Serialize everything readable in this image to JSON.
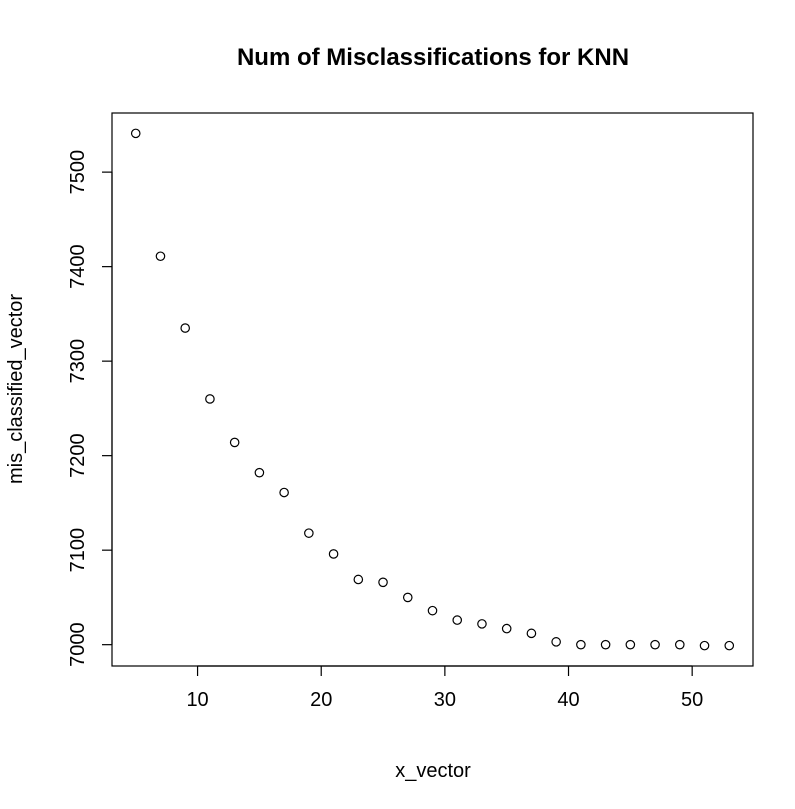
{
  "chart_data": {
    "type": "scatter",
    "title": "Num of Misclassifications for KNN",
    "xlabel": "x_vector",
    "ylabel": "mis_classified_vector",
    "x": [
      5,
      7,
      9,
      11,
      13,
      15,
      17,
      19,
      21,
      23,
      25,
      27,
      29,
      31,
      33,
      35,
      37,
      39,
      41,
      43,
      45,
      47,
      49,
      51,
      53
    ],
    "y": [
      7541,
      7411,
      7335,
      7260,
      7214,
      7182,
      7161,
      7118,
      7096,
      7069,
      7066,
      7050,
      7036,
      7026,
      7022,
      7017,
      7012,
      7003,
      7000,
      7000,
      7000,
      7000,
      7000,
      6999,
      6999
    ],
    "xticks": [
      10,
      20,
      30,
      40,
      50
    ],
    "yticks": [
      7000,
      7100,
      7200,
      7300,
      7400,
      7500
    ],
    "xlim": [
      3.08,
      54.92
    ],
    "ylim": [
      6977.44,
      7562.56
    ],
    "grid": false,
    "marker": "open-circle",
    "colors": {
      "points": "#000000",
      "axes": "#000000",
      "background": "#ffffff"
    }
  }
}
